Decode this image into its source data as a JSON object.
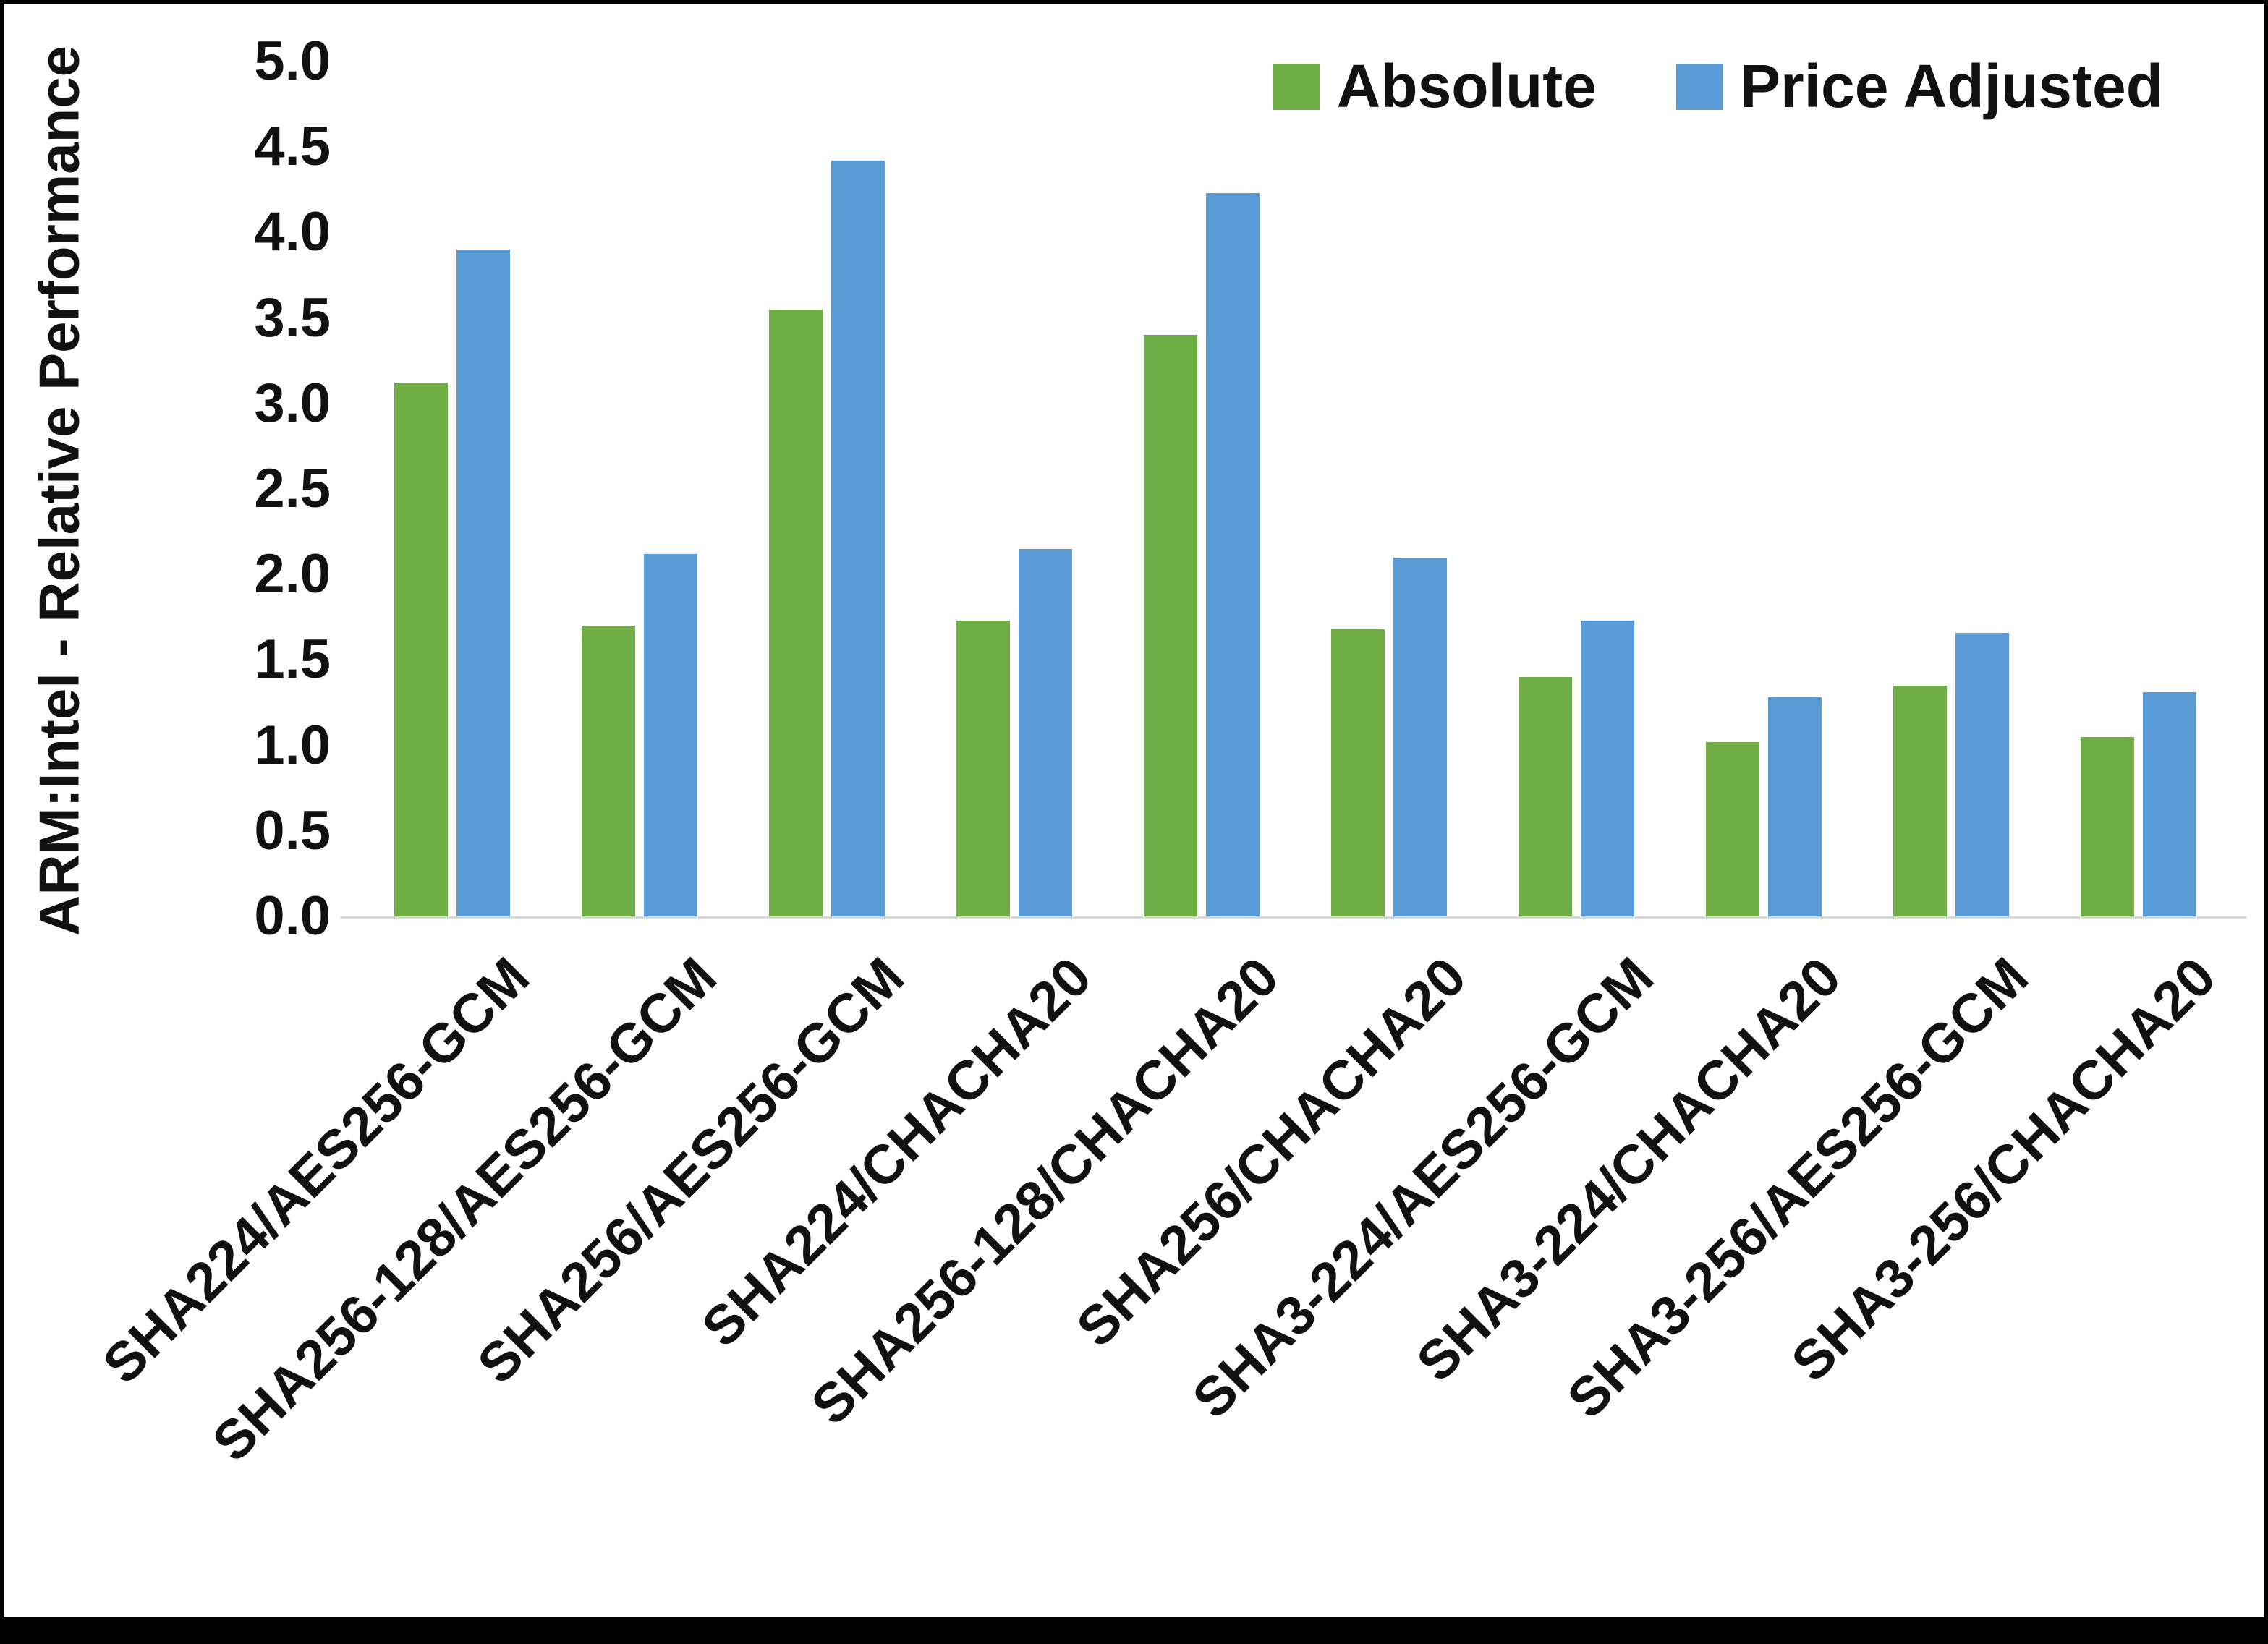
{
  "figure": {
    "background": "#FFFFFF",
    "frame_color": "#000000",
    "axis_line_color": "#D9D9D9"
  },
  "chart_data": {
    "type": "bar",
    "title": "",
    "xlabel": "",
    "ylabel": "ARM:Intel - Relative Performance",
    "ylim": [
      0.0,
      5.0
    ],
    "ytick_step": 0.5,
    "yticks": [
      "5.0",
      "4.5",
      "4.0",
      "3.5",
      "3.0",
      "2.5",
      "2.0",
      "1.5",
      "1.0",
      "0.5",
      "0.0"
    ],
    "grid": false,
    "legend_position": "top-right",
    "categories": [
      "SHA224/AES256-GCM",
      "SHA256-128/AES256-GCM",
      "SHA256/AES256-GCM",
      "SHA224/CHACHA20",
      "SHA256-128/CHACHA20",
      "SHA256/CHACHA20",
      "SHA3-224/AES256-GCM",
      "SHA3-224/CHACHA20",
      "SHA3-256/AES256-GCM",
      "SHA3-256/CHACHA20"
    ],
    "series": [
      {
        "name": "Absolute",
        "color": "#70AD47",
        "values": [
          3.12,
          1.7,
          3.55,
          1.73,
          3.4,
          1.68,
          1.4,
          1.02,
          1.35,
          1.05
        ]
      },
      {
        "name": "Price Adjusted",
        "color": "#5B9BD5",
        "values": [
          3.9,
          2.12,
          4.42,
          2.15,
          4.23,
          2.1,
          1.73,
          1.28,
          1.66,
          1.31
        ]
      }
    ]
  }
}
